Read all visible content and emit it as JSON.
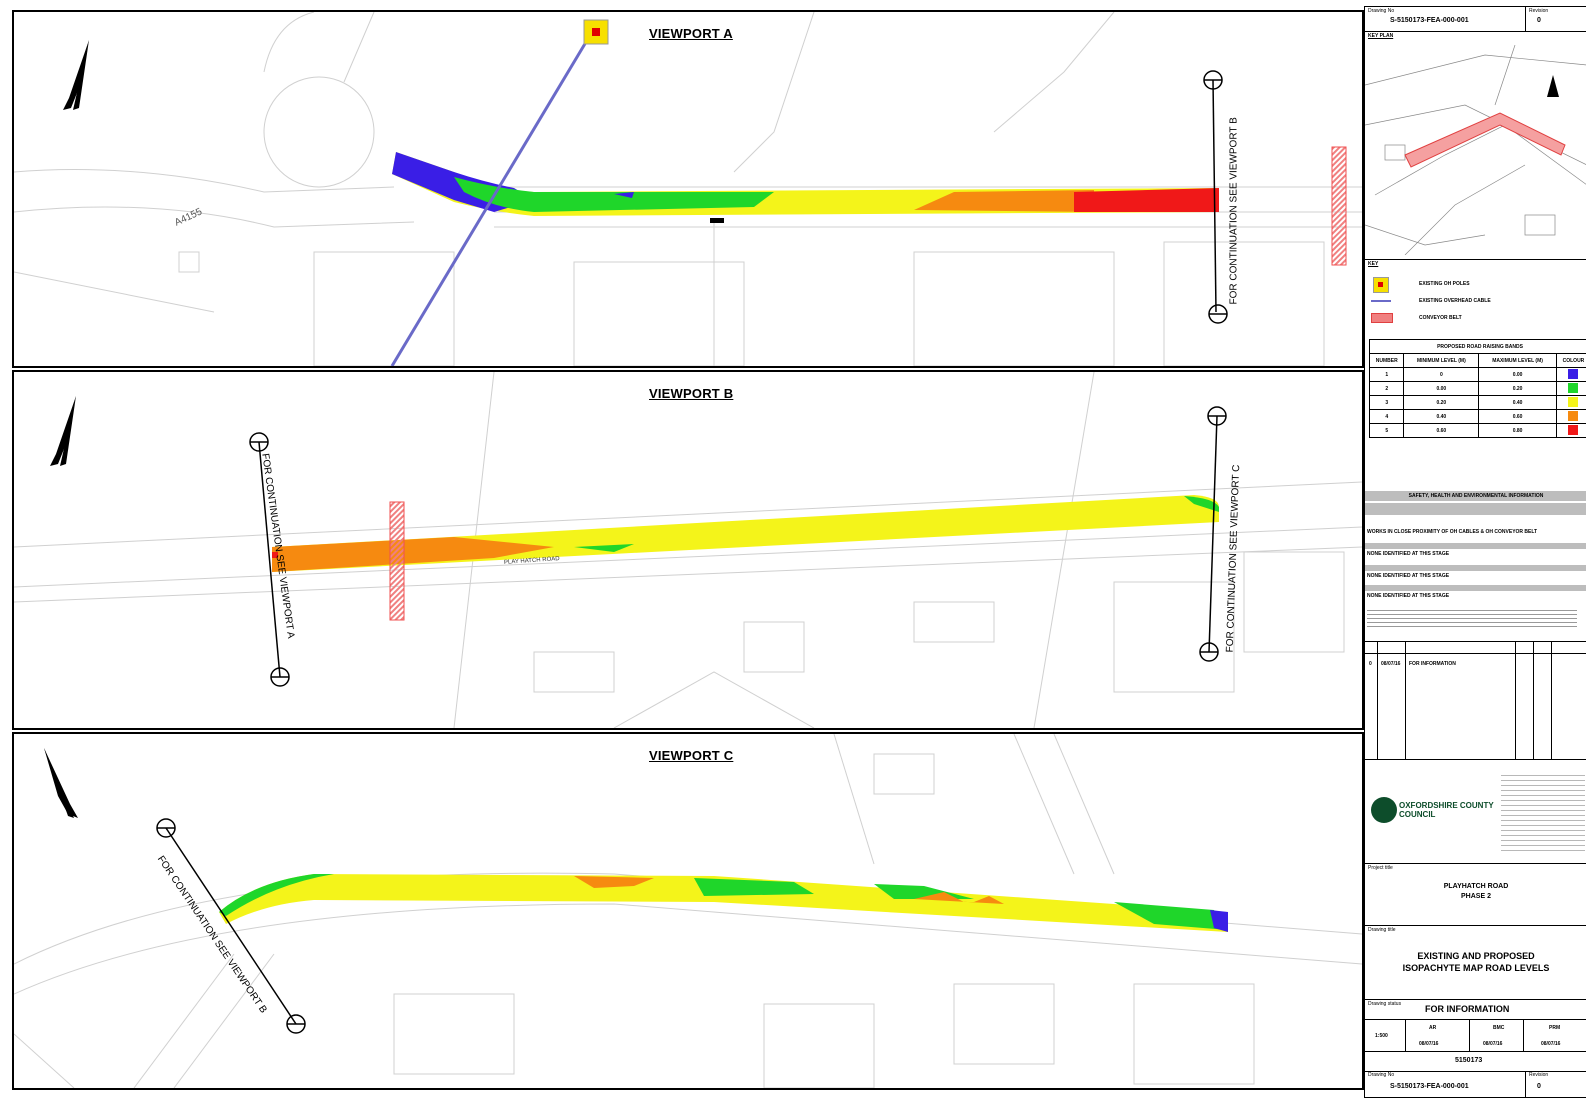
{
  "viewports": {
    "a": {
      "title": "VIEWPORT A",
      "continuation_right": "FOR CONTINUATION SEE VIEWPORT B",
      "road_label": "A4155",
      "side_road": "",
      "ch_labels": [
        "",
        ""
      ]
    },
    "b": {
      "title": "VIEWPORT B",
      "continuation_left": "FOR CONTINUATION SEE VIEWPORT A",
      "continuation_right": "FOR CONTINUATION SEE VIEWPORT C",
      "road_label": "PLAY HATCH ROAD"
    },
    "c": {
      "title": "VIEWPORT C",
      "continuation_left": "FOR CONTINUATION SEE VIEWPORT B",
      "side_road": ""
    }
  },
  "title_block": {
    "drawing_no_label": "Drawing No",
    "drawing_no": "S-5150173-FEA-000-001",
    "revision_label": "Revision",
    "revision": "0",
    "key_plan_label": "KEY PLAN",
    "key_label": "KEY",
    "legend": [
      {
        "symbol": "pole",
        "label": "EXISTING OH POLES"
      },
      {
        "symbol": "cable",
        "label": "EXISTING OVERHEAD CABLE"
      },
      {
        "symbol": "conveyor",
        "label": "CONVEYOR BELT"
      }
    ],
    "bands_title": "PROPOSED ROAD RAISING BANDS",
    "bands_headers": [
      "NUMBER",
      "MINIMUM LEVEL (M)",
      "MAXIMUM LEVEL (M)",
      "COLOUR"
    ],
    "bands": [
      {
        "number": "1",
        "min": "0",
        "max": "0.00",
        "color": "#3a1ee6"
      },
      {
        "number": "2",
        "min": "0.00",
        "max": "0.20",
        "color": "#1fd62a"
      },
      {
        "number": "3",
        "min": "0.20",
        "max": "0.40",
        "color": "#f4f41a"
      },
      {
        "number": "4",
        "min": "0.40",
        "max": "0.60",
        "color": "#f68a10"
      },
      {
        "number": "5",
        "min": "0.60",
        "max": "0.80",
        "color": "#f01818"
      }
    ],
    "she_title": "SAFETY, HEALTH AND ENVIRONMENTAL INFORMATION",
    "she_hazard": "WORKS IN CLOSE PROXIMITY OF OH CABLES & OH CONVEYOR BELT",
    "she_none_1": "NONE IDENTIFIED AT THIS STAGE",
    "she_none_2": "NONE IDENTIFIED AT THIS STAGE",
    "she_none_3": "NONE IDENTIFIED AT THIS STAGE",
    "rev_row": {
      "rev": "0",
      "date": "08/07/16",
      "purpose": "FOR INFORMATION"
    },
    "council_name": "OXFORDSHIRE COUNTY COUNCIL",
    "project_label": "Project title",
    "project_line1": "PLAYHATCH ROAD",
    "project_line2": "PHASE 2",
    "drawing_title_label": "Drawing title",
    "drawing_title_line1": "EXISTING AND PROPOSED",
    "drawing_title_line2": "ISOPACHYTE MAP ROAD LEVELS",
    "status_label": "Drawing status",
    "status": "FOR INFORMATION",
    "scale": "1:500",
    "drawn_initials": "AR",
    "checked_initials": "BMC",
    "approved_initials": "PRM",
    "drawn_date": "08/07/16",
    "checked_date": "08/07/16",
    "approved_date": "08/07/16",
    "project_number": "5150173"
  },
  "colors": {
    "band1": "#3a1ee6",
    "band2": "#1fd62a",
    "band3": "#f4f41a",
    "band4": "#f68a10",
    "band5": "#f01818",
    "cable": "#6a6ac8",
    "pole": "#f7e000"
  }
}
